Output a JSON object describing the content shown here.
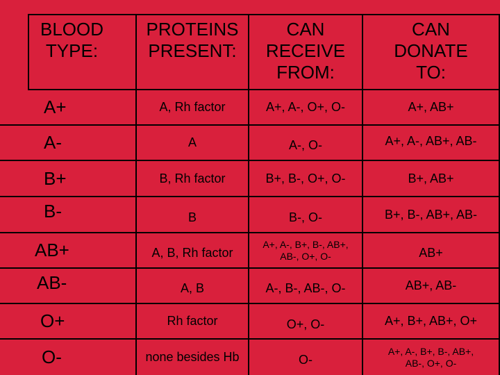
{
  "headers": {
    "blood_type": "BLOOD TYPE:",
    "proteins": "PROTEINS PRESENT:",
    "receive": "CAN RECEIVE FROM:",
    "donate": "CAN DONATE TO:"
  },
  "rows": [
    {
      "type": "A+",
      "proteins": "A, Rh factor",
      "receive": "A+, A-, O+, O-",
      "donate": "A+, AB+"
    },
    {
      "type": "A-",
      "proteins": "A",
      "receive": "A-, O-",
      "donate": "A+, A-, AB+, AB-"
    },
    {
      "type": "B+",
      "proteins": "B, Rh factor",
      "receive": "B+, B-, O+, O-",
      "donate": "B+, AB+"
    },
    {
      "type": "B-",
      "proteins": "B",
      "receive": "B-, O-",
      "donate": "B+, B-, AB+, AB-"
    },
    {
      "type": "AB+",
      "proteins": "A, B, Rh factor",
      "receive": "A+, A-, B+, B-, AB+, AB-, O+, O-",
      "donate": "AB+"
    },
    {
      "type": "AB-",
      "proteins": "A, B",
      "receive": "A-, B-, AB-, O-",
      "donate": "AB+, AB-"
    },
    {
      "type": "O+",
      "proteins": "Rh factor",
      "receive": "O+, O-",
      "donate": "A+, B+, AB+, O+"
    },
    {
      "type": "O-",
      "proteins": "none besides Hb",
      "receive": "O-",
      "donate": "A+, A-, B+, B-, AB+, AB-, O+, O-"
    }
  ],
  "colors": {
    "background": "#d9203c",
    "text": "#000000",
    "grid": "#000000"
  }
}
